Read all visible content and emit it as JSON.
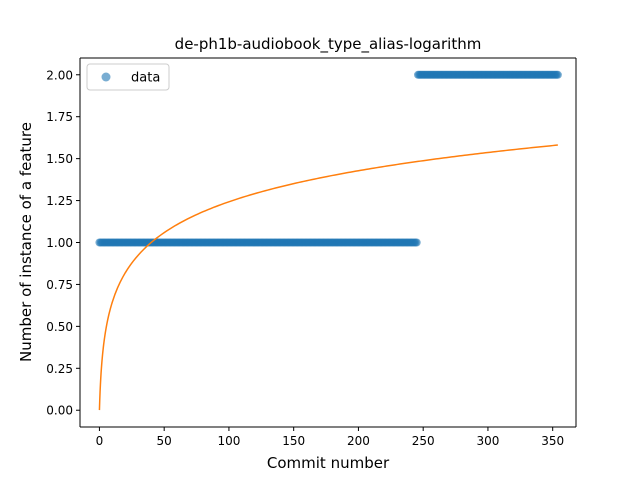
{
  "chart_data": {
    "type": "scatter",
    "title": "de-ph1b-audiobook_type_alias-logarithm",
    "xlabel": "Commit number",
    "ylabel": "Number of instance of a feature",
    "xlim": [
      -15,
      368
    ],
    "ylim": [
      -0.1,
      2.1
    ],
    "x_ticks": [
      0,
      50,
      100,
      150,
      200,
      250,
      300,
      350
    ],
    "y_ticks": [
      0.0,
      0.25,
      0.5,
      0.75,
      1.0,
      1.25,
      1.5,
      1.75,
      2.0
    ],
    "x_tick_labels": [
      "0",
      "50",
      "100",
      "150",
      "200",
      "250",
      "300",
      "350"
    ],
    "y_tick_labels": [
      "0.00",
      "0.25",
      "0.50",
      "0.75",
      "1.00",
      "1.25",
      "1.50",
      "1.75",
      "2.00"
    ],
    "legend": {
      "position": "upper-left",
      "entries": [
        "data"
      ]
    },
    "series": [
      {
        "name": "data",
        "kind": "scatter",
        "color": "#1f77b4",
        "segments": [
          {
            "x_start": 0,
            "x_end": 245,
            "y": 1.0
          },
          {
            "x_start": 246,
            "x_end": 354,
            "y": 2.0
          }
        ]
      },
      {
        "kind": "line",
        "color": "#ff7f0e",
        "model": "a + b*ln(x+1)",
        "x_range": [
          0,
          354
        ],
        "points": [
          [
            0,
            0.0
          ],
          [
            10,
            0.645
          ],
          [
            50,
            1.06
          ],
          [
            100,
            1.243
          ],
          [
            150,
            1.355
          ],
          [
            200,
            1.432
          ],
          [
            250,
            1.491
          ],
          [
            300,
            1.537
          ],
          [
            354,
            1.57
          ]
        ]
      }
    ]
  }
}
